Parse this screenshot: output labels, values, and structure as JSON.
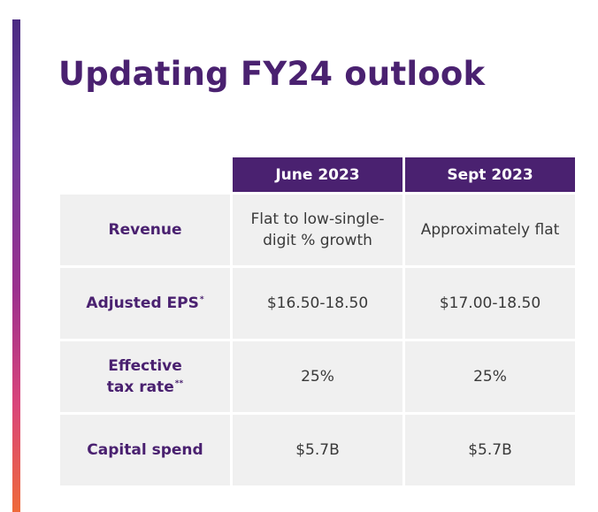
{
  "title": "Updating FY24 outlook",
  "table": {
    "columns": [
      "June 2023",
      "Sept 2023"
    ],
    "rows": [
      {
        "label": "Revenue",
        "mark": "",
        "values": [
          "Flat to low-single-digit % growth",
          "Approximately flat"
        ]
      },
      {
        "label": "Adjusted EPS",
        "mark": "*",
        "values": [
          "$16.50-18.50",
          "$17.00-18.50"
        ]
      },
      {
        "label": "Effective tax rate",
        "mark": "**",
        "values": [
          "25%",
          "25%"
        ]
      },
      {
        "label": "Capital spend",
        "mark": "",
        "values": [
          "$5.7B",
          "$5.7B"
        ]
      }
    ]
  },
  "colors": {
    "brand_purple": "#4a2170",
    "cell_background": "#f0f0f0",
    "accent_gradient": [
      "#4a2a82",
      "#9b2f8e",
      "#ee6a3a"
    ]
  }
}
